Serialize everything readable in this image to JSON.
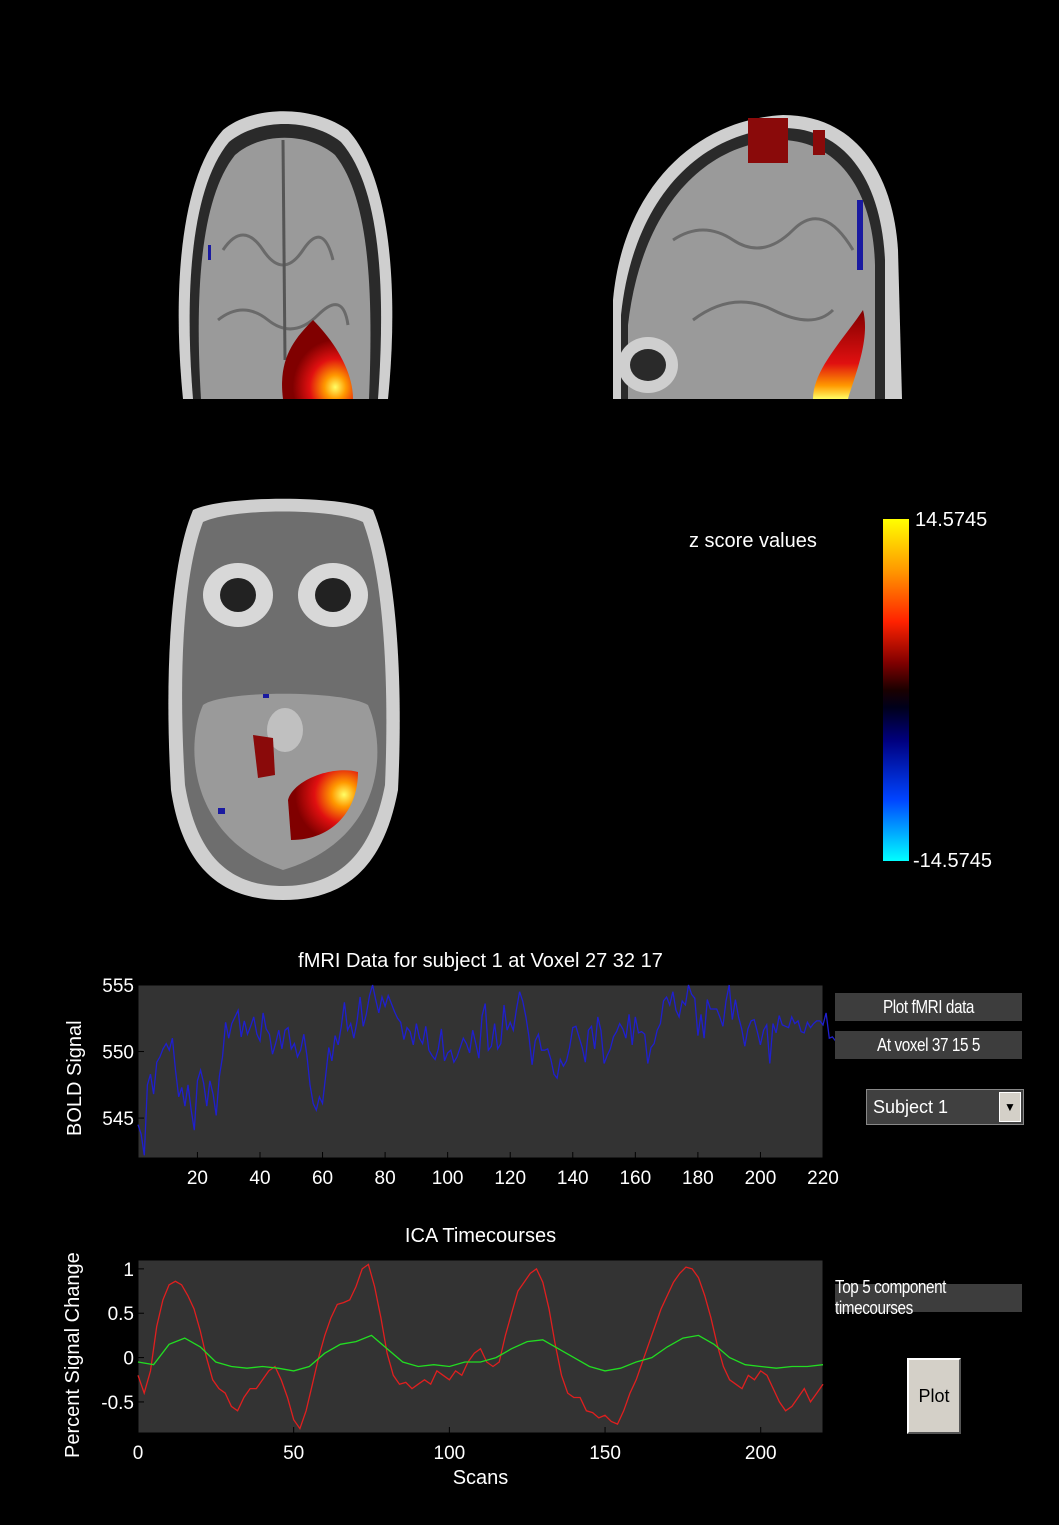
{
  "colorbar": {
    "label": "z score values",
    "max_label": "14.5745",
    "min_label": "-14.5745",
    "max": 14.5745,
    "min": -14.5745
  },
  "slices": {
    "coronal": "",
    "sagittal": "",
    "axial": ""
  },
  "controls": {
    "plot_fmri_button": "Plot fMRI data",
    "voxel_button": "At voxel 37  15   5",
    "subject_select": "Subject 1",
    "top_components_button": "Top 5 component timecourses",
    "plot_button": "Plot"
  },
  "colors": {
    "axes_bg": "#333333",
    "bold_line": "#1f1fcf",
    "ica_red": "#e01f1f",
    "ica_green": "#22dd22"
  },
  "chart_data": [
    {
      "type": "line",
      "title": "fMRI Data for subject 1 at Voxel 27  32  17",
      "xlabel": "",
      "ylabel": "BOLD Signal",
      "xlim": [
        1,
        220
      ],
      "ylim": [
        542,
        555
      ],
      "xticks": [
        20,
        40,
        60,
        80,
        100,
        120,
        140,
        160,
        180,
        200,
        220
      ],
      "yticks": [
        545,
        550,
        555
      ],
      "series": [
        {
          "values": [
            544.5,
            543.8,
            542.2,
            547.5,
            548.3,
            546.8,
            549.2,
            549.6,
            550.2,
            550.6,
            550.1,
            551.0,
            548.6,
            546.6,
            547.3,
            545.9,
            547.5,
            545.6,
            544.1,
            547.8,
            548.6,
            547.6,
            545.9,
            547.8,
            546.8,
            545.2,
            548.1,
            549.6,
            552.2,
            551.0,
            552.1,
            552.6,
            553.1,
            551.1,
            552.3,
            551.3,
            551.9,
            552.6,
            551.3,
            550.8,
            552.9,
            551.7,
            551.3,
            549.8,
            550.6,
            551.6,
            550.2,
            551.6,
            551.8,
            550.2,
            550.6,
            549.6,
            550.1,
            551.3,
            549.7,
            547.5,
            546.1,
            545.6,
            546.6,
            546.1,
            548.2,
            550.3,
            549.3,
            551.2,
            550.5,
            551.9,
            553.7,
            551.6,
            552.1,
            551.0,
            552.2,
            554.1,
            551.9,
            552.8,
            554.2,
            555.0,
            553.9,
            552.9,
            554.1,
            553.4,
            554.2,
            553.6,
            553.0,
            552.5,
            552.2,
            550.9,
            551.8,
            551.5,
            550.5,
            552.1,
            551.0,
            550.6,
            551.9,
            550.1,
            549.7,
            549.4,
            550.2,
            551.7,
            549.3,
            549.9,
            550.1,
            549.2,
            549.6,
            550.3,
            551.0,
            550.6,
            549.9,
            551.6,
            550.6,
            549.5,
            552.7,
            553.6,
            550.1,
            550.4,
            552.1,
            550.2,
            550.6,
            553.5,
            551.6,
            552.2,
            551.6,
            553.2,
            554.5,
            553.8,
            552.6,
            551.1,
            549.0,
            550.8,
            551.3,
            550.1,
            550.1,
            550.2,
            549.4,
            548.3,
            548.0,
            549.4,
            548.9,
            549.3,
            550.3,
            551.8,
            551.9,
            551.1,
            550.3,
            549.2,
            551.6,
            551.9,
            550.2,
            552.6,
            551.6,
            549.1,
            549.7,
            550.2,
            551.1,
            551.5,
            552.1,
            551.7,
            551.0,
            552.8,
            550.5,
            552.6,
            551.4,
            551.5,
            551.3,
            549.1,
            550.3,
            550.6,
            551.6,
            552.1,
            553.8,
            554.1,
            553.5,
            554.5,
            553.1,
            552.6,
            553.8,
            553.5,
            555.0,
            554.3,
            554.0,
            551.2,
            552.8,
            551.0,
            553.9,
            553.2,
            553.2,
            553.2,
            552.6,
            551.9,
            553.8,
            555.0,
            552.4,
            553.9,
            552.6,
            551.7,
            550.4,
            551.7,
            552.3,
            552.4,
            551.5,
            550.5,
            551.6,
            552.0,
            549.1,
            552.1,
            551.4,
            552.7,
            552.0,
            551.9,
            551.8,
            552.6,
            552.1,
            552.3,
            551.5,
            551.4,
            552.2,
            551.8,
            552.1,
            552.3,
            552.3,
            552.0,
            552.9,
            551.0,
            551.1,
            550.8
          ]
        }
      ]
    },
    {
      "type": "line",
      "title": "ICA Timecourses",
      "xlabel": "Scans",
      "ylabel": "Percent Signal Change",
      "xlim": [
        0,
        220
      ],
      "ylim": [
        -0.85,
        1.1
      ],
      "xticks": [
        0,
        50,
        100,
        150,
        200
      ],
      "yticks": [
        -0.5,
        0,
        0.5,
        1
      ],
      "ytick_labels": [
        "-0.5",
        "0",
        "0.5",
        "1"
      ],
      "series": [
        {
          "color": "red",
          "x": [
            0,
            2,
            4,
            6,
            8,
            10,
            12,
            14,
            16,
            18,
            20,
            22,
            24,
            26,
            28,
            30,
            32,
            34,
            36,
            38,
            40,
            42,
            44,
            46,
            48,
            50,
            52,
            54,
            56,
            58,
            60,
            62,
            64,
            66,
            68,
            70,
            72,
            74,
            76,
            78,
            80,
            82,
            84,
            86,
            88,
            90,
            92,
            94,
            96,
            98,
            100,
            102,
            104,
            106,
            108,
            110,
            112,
            114,
            116,
            118,
            120,
            122,
            124,
            126,
            128,
            130,
            132,
            134,
            136,
            138,
            140,
            142,
            144,
            146,
            148,
            150,
            152,
            154,
            156,
            158,
            160,
            162,
            164,
            166,
            168,
            170,
            172,
            174,
            176,
            178,
            180,
            182,
            184,
            186,
            188,
            190,
            192,
            194,
            196,
            198,
            200,
            202,
            204,
            206,
            208,
            210,
            212,
            214,
            216,
            218,
            220
          ],
          "values": [
            -0.2,
            -0.4,
            -0.15,
            0.35,
            0.65,
            0.82,
            0.86,
            0.82,
            0.7,
            0.55,
            0.3,
            0.0,
            -0.25,
            -0.35,
            -0.4,
            -0.55,
            -0.6,
            -0.45,
            -0.35,
            -0.35,
            -0.25,
            -0.15,
            -0.1,
            -0.25,
            -0.45,
            -0.7,
            -0.8,
            -0.6,
            -0.3,
            0.0,
            0.25,
            0.45,
            0.6,
            0.62,
            0.65,
            0.8,
            1.0,
            1.05,
            0.8,
            0.45,
            0.05,
            -0.2,
            -0.3,
            -0.28,
            -0.35,
            -0.3,
            -0.25,
            -0.3,
            -0.15,
            -0.2,
            -0.25,
            -0.15,
            -0.2,
            -0.05,
            0.05,
            0.1,
            -0.05,
            -0.1,
            -0.05,
            0.25,
            0.5,
            0.75,
            0.85,
            0.95,
            1.0,
            0.85,
            0.55,
            0.15,
            -0.2,
            -0.4,
            -0.45,
            -0.45,
            -0.6,
            -0.62,
            -0.68,
            -0.65,
            -0.72,
            -0.75,
            -0.6,
            -0.4,
            -0.25,
            -0.05,
            0.15,
            0.35,
            0.55,
            0.7,
            0.85,
            0.95,
            1.02,
            1.0,
            0.9,
            0.7,
            0.45,
            0.15,
            -0.1,
            -0.25,
            -0.3,
            -0.35,
            -0.2,
            -0.25,
            -0.15,
            -0.2,
            -0.35,
            -0.5,
            -0.6,
            -0.55,
            -0.45,
            -0.35,
            -0.5,
            -0.4,
            -0.3
          ]
        },
        {
          "color": "green",
          "x": [
            0,
            5,
            10,
            15,
            20,
            25,
            30,
            35,
            40,
            45,
            50,
            55,
            60,
            65,
            70,
            75,
            80,
            85,
            90,
            95,
            100,
            105,
            110,
            115,
            120,
            125,
            130,
            135,
            140,
            145,
            150,
            155,
            160,
            165,
            170,
            175,
            180,
            185,
            190,
            195,
            200,
            205,
            210,
            215,
            220
          ],
          "values": [
            -0.05,
            -0.08,
            0.15,
            0.22,
            0.12,
            -0.05,
            -0.1,
            -0.12,
            -0.1,
            -0.12,
            -0.15,
            -0.1,
            0.05,
            0.15,
            0.18,
            0.25,
            0.1,
            -0.05,
            -0.1,
            -0.08,
            -0.1,
            -0.05,
            -0.05,
            0.0,
            0.1,
            0.18,
            0.2,
            0.1,
            0.0,
            -0.1,
            -0.15,
            -0.12,
            -0.05,
            0.0,
            0.12,
            0.22,
            0.25,
            0.15,
            0.0,
            -0.08,
            -0.1,
            -0.12,
            -0.1,
            -0.1,
            -0.08
          ]
        }
      ]
    }
  ]
}
